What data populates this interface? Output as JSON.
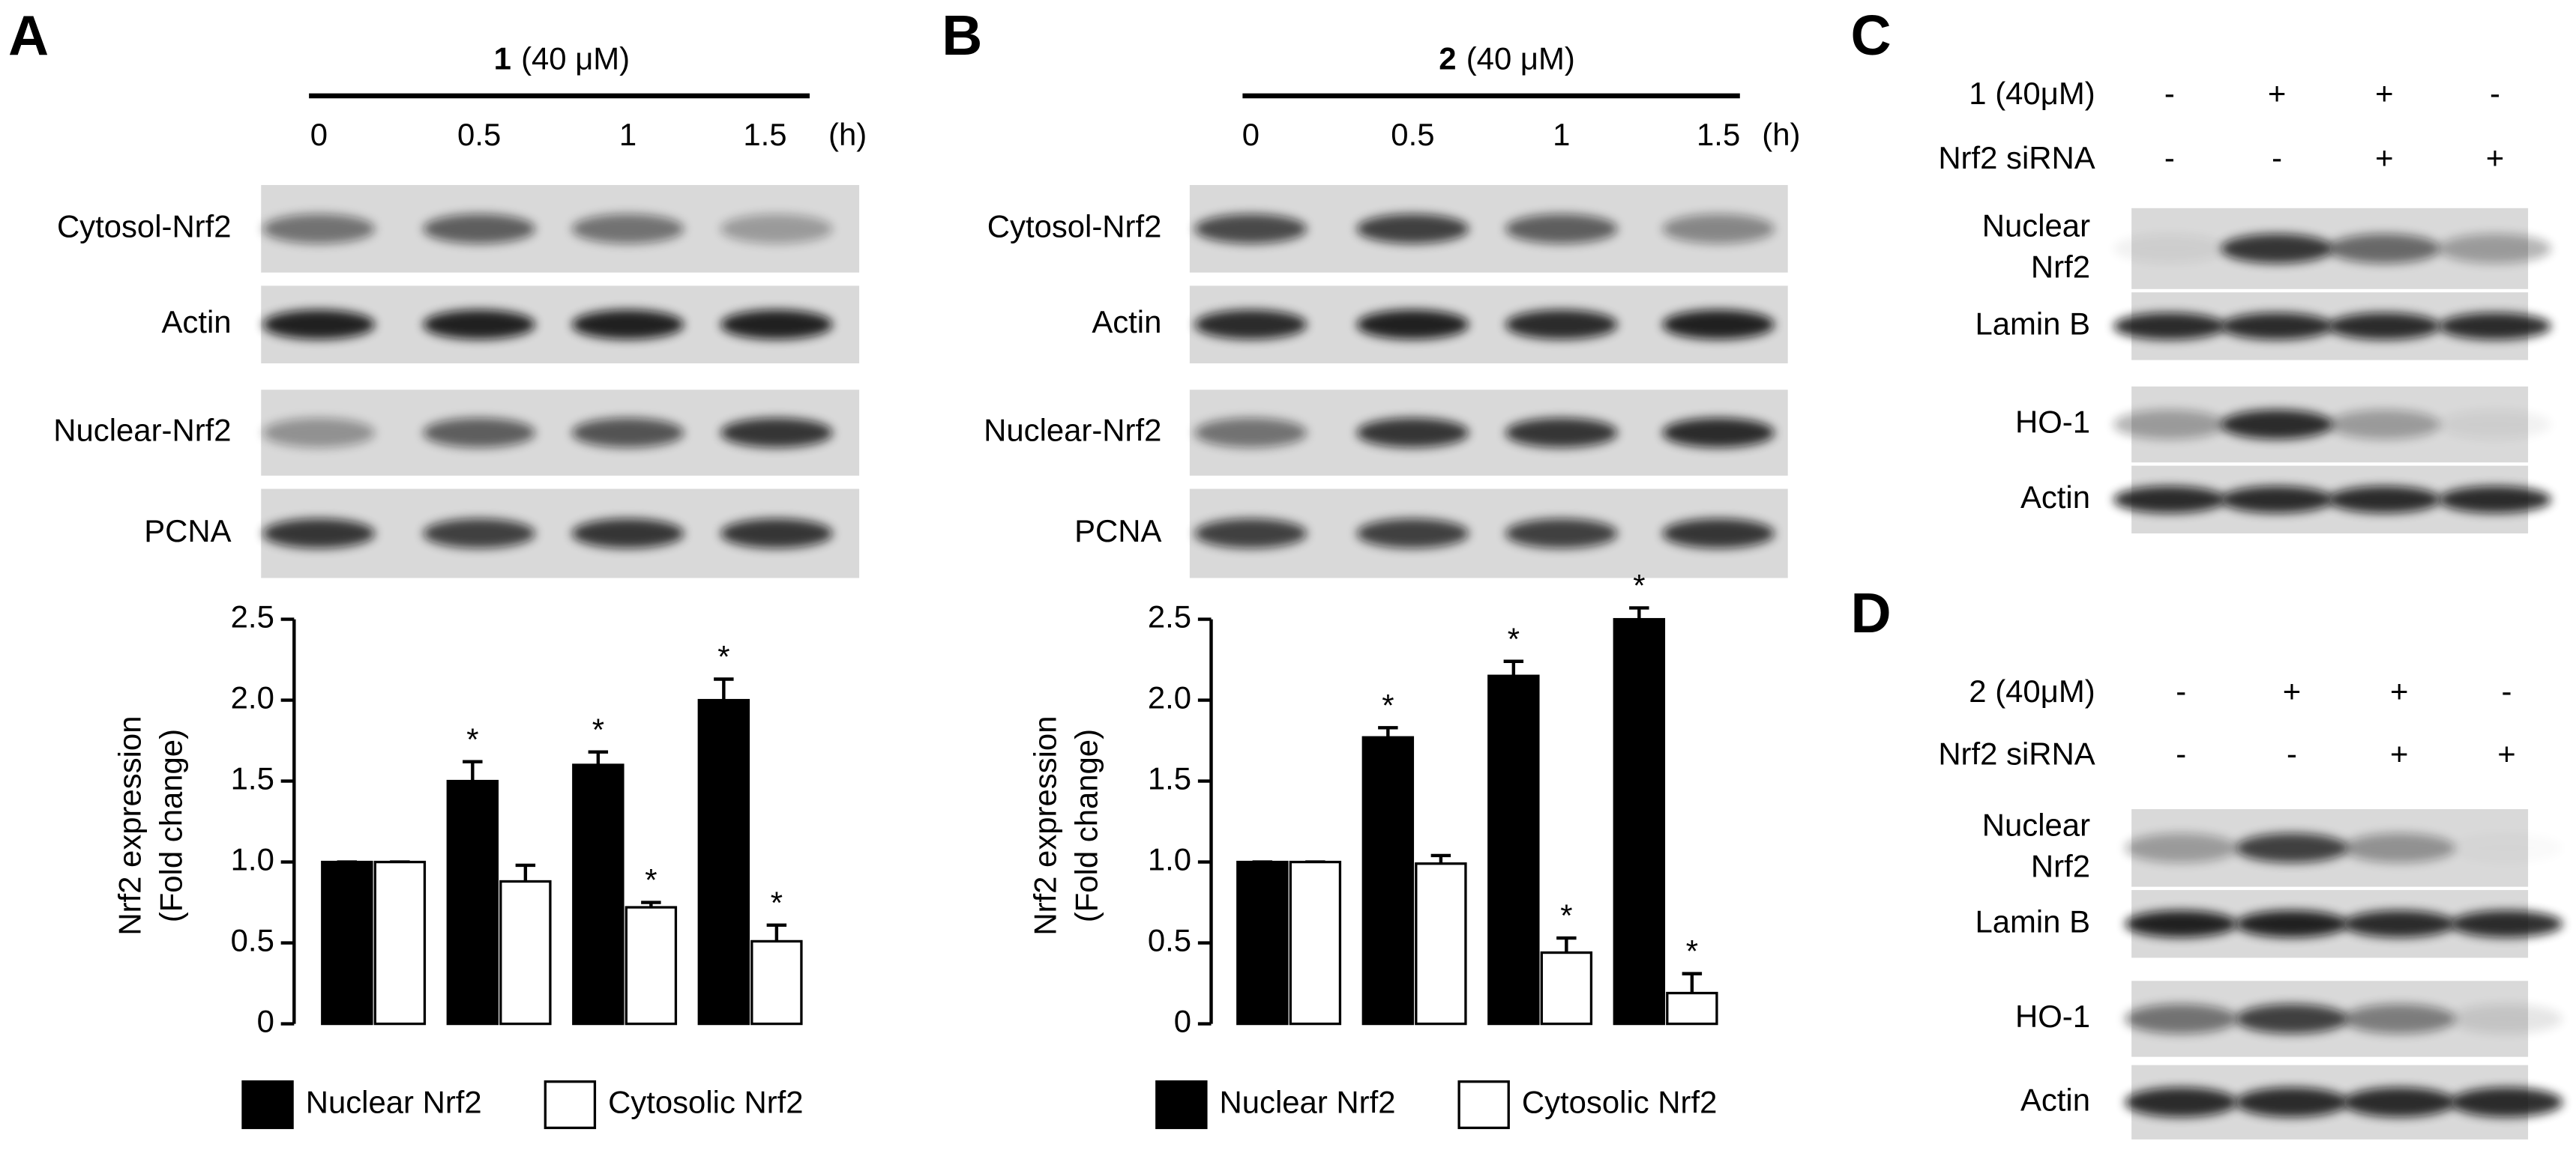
{
  "panels": [
    {
      "label": "A",
      "compound": "1",
      "dose": "(40 μM)",
      "times": [
        "0",
        "0.5",
        "1",
        "1.5"
      ],
      "time_unit": "(h)",
      "blots": [
        "Cytosol-Nrf2",
        "Actin",
        "Nuclear-Nrf2",
        "PCNA"
      ]
    },
    {
      "label": "B",
      "compound": "2",
      "dose": "(40 μM)",
      "times": [
        "0",
        "0.5",
        "1",
        "1.5"
      ],
      "time_unit": "(h)",
      "blots": [
        "Cytosol-Nrf2",
        "Actin",
        "Nuclear-Nrf2",
        "PCNA"
      ]
    },
    {
      "label": "C",
      "conditions": [
        {
          "name": "1 (40μM)",
          "signs": [
            "-",
            "+",
            "+",
            "-"
          ]
        },
        {
          "name": "Nrf2 siRNA",
          "signs": [
            "-",
            "-",
            "+",
            "+"
          ]
        }
      ],
      "blots": [
        [
          "Nuclear",
          "Nrf2"
        ],
        [
          "Lamin B"
        ],
        [
          "HO-1"
        ],
        [
          "Actin"
        ]
      ]
    },
    {
      "label": "D",
      "conditions": [
        {
          "name": "2 (40μM)",
          "signs": [
            "-",
            "+",
            "+",
            "-"
          ]
        },
        {
          "name": "Nrf2 siRNA",
          "signs": [
            "-",
            "-",
            "+",
            "+"
          ]
        }
      ],
      "blots": [
        [
          "Nuclear",
          "Nrf2"
        ],
        [
          "Lamin B"
        ],
        [
          "HO-1"
        ],
        [
          "Actin"
        ]
      ]
    }
  ],
  "chart_data": [
    {
      "type": "bar",
      "ylabel": [
        "Nrf2 expression",
        "(Fold change)"
      ],
      "categories": [
        null,
        null,
        null,
        null
      ],
      "ylim": [
        0,
        2.5
      ],
      "yticks": [
        0,
        0.5,
        {
          "value": 1,
          "label": "1.0"
        },
        1.5,
        {
          "value": 2,
          "label": "2.0"
        },
        2.5
      ],
      "series": [
        {
          "name": "Nuclear Nrf2",
          "color": "#000000",
          "values": [
            1.0,
            1.5,
            1.6,
            2.0
          ],
          "errors": [
            0,
            0.12,
            0.08,
            0.13
          ],
          "significance": [
            null,
            "*",
            "*",
            "*"
          ]
        },
        {
          "name": "Cytosolic Nrf2",
          "color": "#ffffff",
          "values": [
            1.0,
            0.88,
            0.72,
            0.51
          ],
          "errors": [
            0,
            0.1,
            0.03,
            0.1
          ],
          "significance": [
            null,
            null,
            "*",
            "*"
          ]
        }
      ]
    },
    {
      "type": "bar",
      "ylabel": [
        "Nrf2 expression",
        "(Fold change)"
      ],
      "categories": [
        null,
        null,
        null,
        null
      ],
      "ylim": [
        0,
        2.5
      ],
      "yticks": [
        0,
        0.5,
        {
          "value": 1,
          "label": "1.0"
        },
        1.5,
        {
          "value": 2,
          "label": "2.0"
        },
        2.5
      ],
      "series": [
        {
          "name": "Nuclear Nrf2",
          "color": "#000000",
          "values": [
            1.0,
            1.77,
            2.15,
            2.5
          ],
          "errors": [
            0,
            0.06,
            0.09,
            0.07
          ],
          "significance": [
            null,
            "*",
            "*",
            "*"
          ]
        },
        {
          "name": "Cytosolic Nrf2",
          "color": "#ffffff",
          "values": [
            1.0,
            0.99,
            0.44,
            0.19
          ],
          "errors": [
            0,
            0.05,
            0.09,
            0.12
          ],
          "significance": [
            null,
            null,
            "*",
            "*"
          ]
        }
      ]
    }
  ]
}
